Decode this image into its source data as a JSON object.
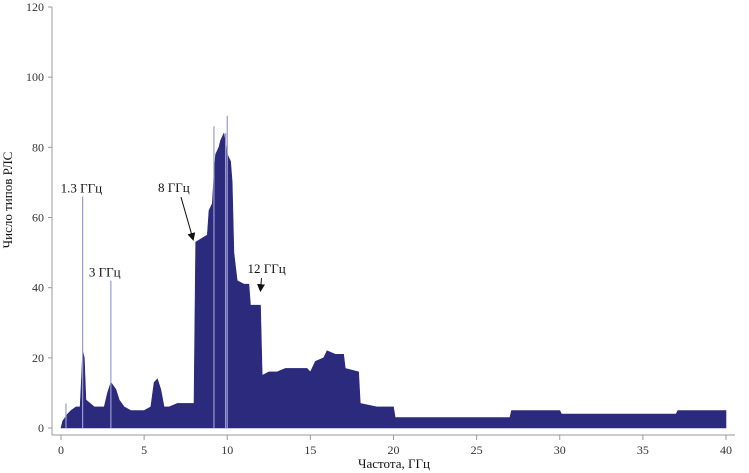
{
  "chart_data": {
    "type": "area",
    "title": "",
    "xlabel": "Частота, ГГц",
    "ylabel": "Число типов РЛС",
    "xlim": [
      0,
      40
    ],
    "ylim": [
      0,
      120
    ],
    "x_ticks": [
      0,
      5,
      10,
      15,
      20,
      25,
      30,
      35,
      40
    ],
    "x_tick_labels": [
      "0",
      "5",
      "10",
      "15",
      "20",
      "25",
      "30",
      "35",
      "40"
    ],
    "y_ticks": [
      0,
      20,
      40,
      60,
      80,
      100,
      120
    ],
    "y_tick_labels": [
      "0",
      "20",
      "40",
      "60",
      "80",
      "100",
      "120"
    ],
    "grid": false,
    "fill_color": "#2b2a7d",
    "spike_color": "#9a9ad0",
    "series": [
      {
        "values": [
          [
            0,
            0
          ],
          [
            0.1,
            2
          ],
          [
            0.4,
            4
          ],
          [
            0.6,
            5
          ],
          [
            0.9,
            6
          ],
          [
            1.15,
            6
          ],
          [
            1.25,
            16
          ],
          [
            1.3,
            22
          ],
          [
            1.4,
            20
          ],
          [
            1.5,
            8
          ],
          [
            2.0,
            6
          ],
          [
            2.6,
            6
          ],
          [
            2.8,
            10
          ],
          [
            3.0,
            13
          ],
          [
            3.3,
            11
          ],
          [
            3.5,
            8
          ],
          [
            3.8,
            6
          ],
          [
            4.2,
            5
          ],
          [
            5.0,
            5
          ],
          [
            5.4,
            6
          ],
          [
            5.6,
            13
          ],
          [
            5.8,
            14
          ],
          [
            6.0,
            11
          ],
          [
            6.2,
            6
          ],
          [
            6.5,
            6
          ],
          [
            7.0,
            7
          ],
          [
            7.8,
            7
          ],
          [
            8.0,
            7
          ],
          [
            8.1,
            53
          ],
          [
            8.8,
            55
          ],
          [
            8.9,
            62
          ],
          [
            9.1,
            64
          ],
          [
            9.2,
            72
          ],
          [
            9.3,
            78
          ],
          [
            9.5,
            80
          ],
          [
            9.6,
            82
          ],
          [
            9.8,
            84
          ],
          [
            10.0,
            78
          ],
          [
            10.2,
            76
          ],
          [
            10.3,
            70
          ],
          [
            10.4,
            50
          ],
          [
            10.6,
            42
          ],
          [
            11.0,
            41
          ],
          [
            11.3,
            41
          ],
          [
            11.4,
            35
          ],
          [
            12.0,
            35
          ],
          [
            12.1,
            15
          ],
          [
            12.5,
            16
          ],
          [
            13.0,
            16
          ],
          [
            13.5,
            17
          ],
          [
            14.0,
            17
          ],
          [
            14.8,
            17
          ],
          [
            15.0,
            16
          ],
          [
            15.3,
            19
          ],
          [
            15.8,
            20
          ],
          [
            16.0,
            22
          ],
          [
            16.5,
            21
          ],
          [
            17.0,
            21
          ],
          [
            17.1,
            17
          ],
          [
            17.9,
            16
          ],
          [
            18.0,
            7
          ],
          [
            19.0,
            6
          ],
          [
            20.0,
            6
          ],
          [
            20.1,
            3
          ],
          [
            25.0,
            3
          ],
          [
            27.0,
            3
          ],
          [
            27.1,
            5
          ],
          [
            30.0,
            5
          ],
          [
            30.1,
            4
          ],
          [
            35.0,
            4
          ],
          [
            37.0,
            4
          ],
          [
            37.1,
            5
          ],
          [
            40.0,
            5
          ],
          [
            40.0,
            0
          ]
        ]
      }
    ],
    "spikes": [
      {
        "x": 0.3,
        "y": 7
      },
      {
        "x": 1.3,
        "y": 66
      },
      {
        "x": 3.0,
        "y": 42
      },
      {
        "x": 9.2,
        "y": 86
      },
      {
        "x": 9.9,
        "y": 84
      },
      {
        "x": 10.0,
        "y": 89
      }
    ],
    "annotations": [
      {
        "text": "1.3 ГГц",
        "x": 1.3,
        "y": 66,
        "arrow": false
      },
      {
        "text": "3 ГГц",
        "x": 3.0,
        "y": 42,
        "arrow": false
      },
      {
        "text": "8 ГГц",
        "x": 8.0,
        "y": 53,
        "arrow": true
      },
      {
        "text": "12 ГГц",
        "x": 12.0,
        "y": 43,
        "arrow": true
      }
    ]
  }
}
